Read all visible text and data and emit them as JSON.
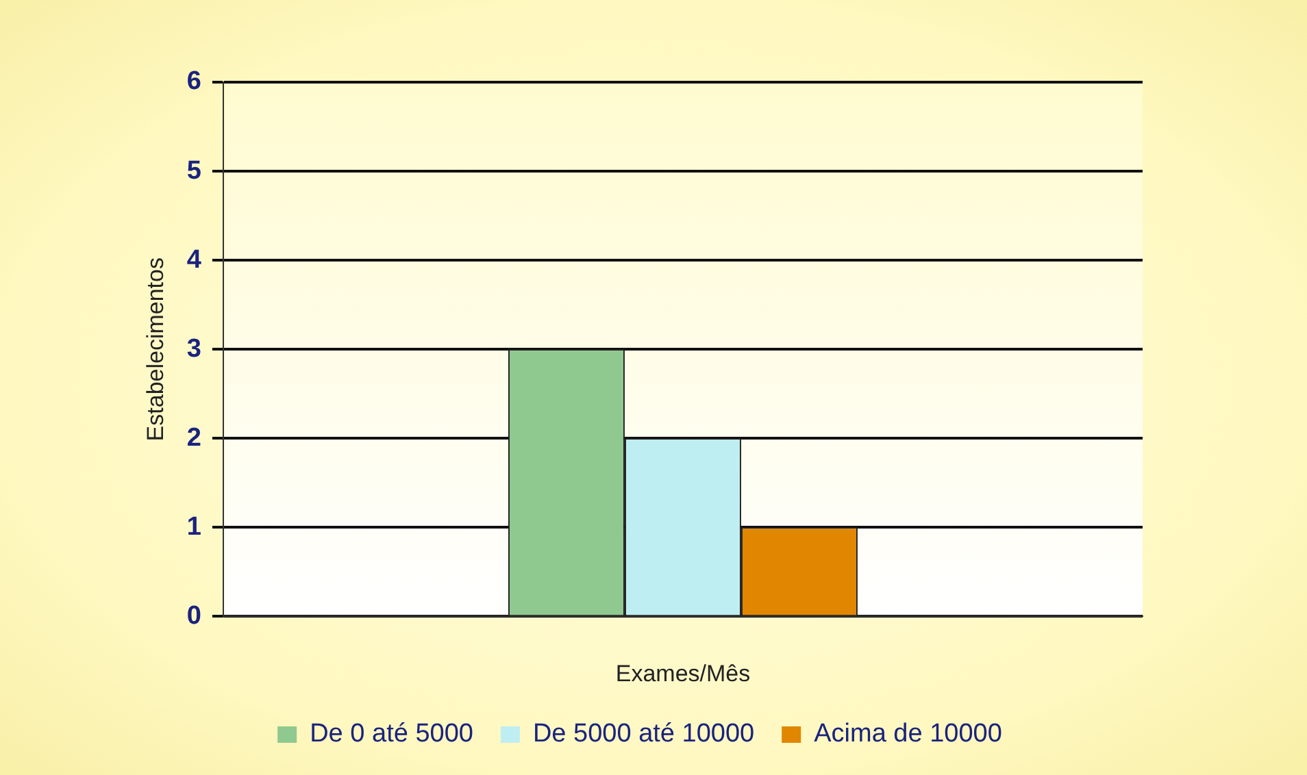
{
  "chart_data": {
    "type": "bar",
    "xlabel": "Exames/Mês",
    "ylabel": "Estabelecimentos",
    "categories": [
      null
    ],
    "series": [
      {
        "name": "De 0 até 5000",
        "color": "#8fc98f",
        "values": [
          3
        ]
      },
      {
        "name": "De 5000 até 10000",
        "color": "#bfeef2",
        "values": [
          2
        ]
      },
      {
        "name": "Acima de 10000",
        "color": "#e08600",
        "values": [
          1
        ]
      }
    ],
    "ylim": [
      0,
      6
    ],
    "yticks": [
      0,
      1,
      2,
      3,
      4,
      5,
      6
    ],
    "grid": "y",
    "legend": "bottom"
  }
}
